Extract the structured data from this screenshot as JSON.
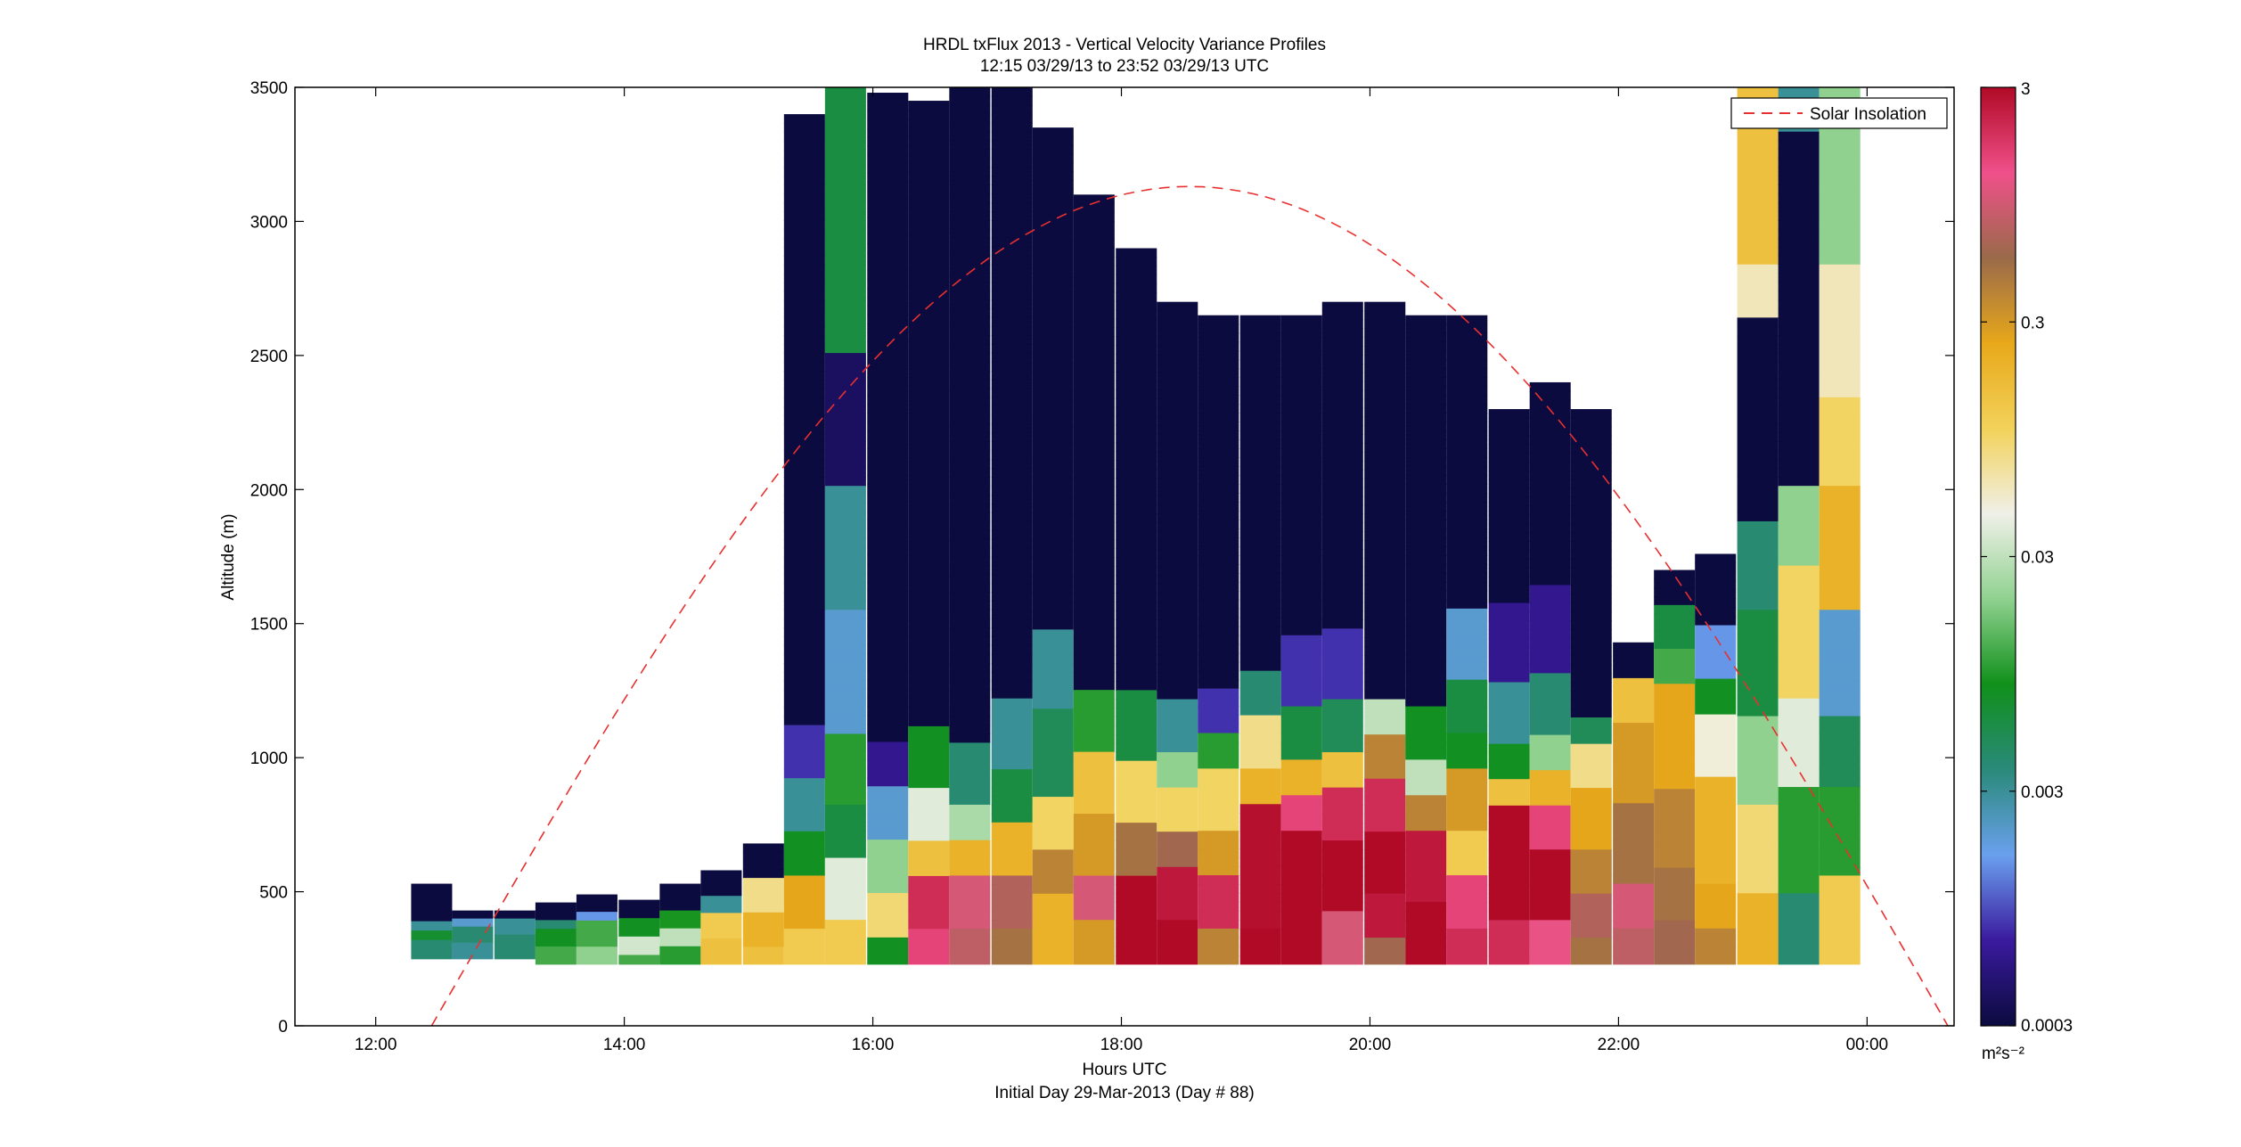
{
  "chart_data": {
    "type": "heatmap",
    "title": "HRDL txFlux 2013 - Vertical Velocity Variance Profiles",
    "subtitle": "12:15 03/29/13 to 23:52 03/29/13  UTC",
    "xlabel": "Hours UTC",
    "xlabel_note": "Initial Day 29-Mar-2013 (Day # 88)",
    "ylabel": "Altitude (m)",
    "x_range_hours": [
      11.35,
      24.7
    ],
    "ylim": [
      0,
      3500
    ],
    "x_ticks": [
      {
        "value": 12,
        "label": "12:00"
      },
      {
        "value": 14,
        "label": "14:00"
      },
      {
        "value": 16,
        "label": "16:00"
      },
      {
        "value": 18,
        "label": "18:00"
      },
      {
        "value": 20,
        "label": "20:00"
      },
      {
        "value": 22,
        "label": "22:00"
      },
      {
        "value": 24,
        "label": "00:00"
      }
    ],
    "y_ticks": [
      0,
      500,
      1000,
      1500,
      2000,
      2500,
      3000,
      3500
    ],
    "colorbar": {
      "scale": "log",
      "range": [
        0.0003,
        3
      ],
      "ticks": [
        {
          "value": 3,
          "label": "3"
        },
        {
          "value": 0.3,
          "label": "0.3"
        },
        {
          "value": 0.03,
          "label": "0.03"
        },
        {
          "value": 0.003,
          "label": "0.003"
        },
        {
          "value": 0.0003,
          "label": "0.0003"
        }
      ],
      "unit_label": "m²s⁻²",
      "stops": [
        "#0b0b3f",
        "#3a1a9e",
        "#6aa0ee",
        "#2a8a7a",
        "#10901a",
        "#8fd18f",
        "#f0f0e8",
        "#f2d25a",
        "#e8a81a",
        "#9a6a4a",
        "#f0508a",
        "#b00a26"
      ]
    },
    "legend": {
      "position": "top-right",
      "entries": [
        {
          "label": "Solar Insolation",
          "style": "dashed",
          "color": "#e83030"
        }
      ]
    },
    "solar_insolation": {
      "start_hour": 12.45,
      "peak_hour": 18.55,
      "peak_altitude": 3130,
      "end_hour": 24.65
    },
    "profiles": [
      {
        "hour": 12.45,
        "top": 530,
        "bottom": 250,
        "segments": [
          [
            0,
            0.0003
          ],
          [
            0.45,
            0.003
          ],
          [
            0.6,
            0.007
          ],
          [
            0.8,
            0.004
          ]
        ]
      },
      {
        "hour": 12.78,
        "top": 430,
        "bottom": 250,
        "segments": [
          [
            0,
            0.0003
          ],
          [
            0.2,
            0.002
          ],
          [
            0.4,
            0.004
          ],
          [
            0.7,
            0.003
          ]
        ]
      },
      {
        "hour": 13.12,
        "top": 430,
        "bottom": 250,
        "segments": [
          [
            0,
            0.0003
          ],
          [
            0.2,
            0.003
          ],
          [
            0.5,
            0.004
          ]
        ]
      },
      {
        "hour": 13.45,
        "top": 460,
        "bottom": 230,
        "segments": [
          [
            0,
            0.0003
          ],
          [
            0.25,
            0.004
          ],
          [
            0.5,
            0.008
          ],
          [
            0.75,
            0.012
          ]
        ]
      },
      {
        "hour": 13.78,
        "top": 490,
        "bottom": 230,
        "segments": [
          [
            0,
            0.0003
          ],
          [
            0.2,
            0.0015
          ],
          [
            0.4,
            0.012
          ],
          [
            0.7,
            0.02
          ]
        ]
      },
      {
        "hour": 14.12,
        "top": 470,
        "bottom": 230,
        "segments": [
          [
            0,
            0.0003
          ],
          [
            0.3,
            0.008
          ],
          [
            0.55,
            0.035
          ],
          [
            0.8,
            0.012
          ]
        ]
      },
      {
        "hour": 14.45,
        "top": 530,
        "bottom": 230,
        "segments": [
          [
            0,
            0.0003
          ],
          [
            0.3,
            0.009
          ],
          [
            0.55,
            0.03
          ],
          [
            0.8,
            0.01
          ]
        ]
      },
      {
        "hour": 14.78,
        "top": 580,
        "bottom": 230,
        "segments": [
          [
            0,
            0.0003
          ],
          [
            0.25,
            0.003
          ],
          [
            0.45,
            0.12
          ],
          [
            0.75,
            0.15
          ]
        ]
      },
      {
        "hour": 15.12,
        "top": 680,
        "bottom": 230,
        "segments": [
          [
            0,
            0.0003
          ],
          [
            0.3,
            0.08
          ],
          [
            0.6,
            0.2
          ],
          [
            0.85,
            0.15
          ]
        ]
      },
      {
        "hour": 15.45,
        "top": 3400,
        "bottom": 230,
        "segments": [
          [
            0,
            0.0003
          ],
          [
            0.72,
            0.0008
          ],
          [
            0.78,
            0.003
          ],
          [
            0.84,
            0.008
          ],
          [
            0.9,
            0.25
          ],
          [
            0.96,
            0.12
          ]
        ]
      },
      {
        "hour": 15.78,
        "top": 3500,
        "bottom": 230,
        "segments": [
          [
            0,
            0.006
          ],
          [
            0.3,
            0.0004
          ],
          [
            0.45,
            0.003
          ],
          [
            0.6,
            0.002
          ],
          [
            0.74,
            0.01
          ],
          [
            0.82,
            0.006
          ],
          [
            0.88,
            0.04
          ],
          [
            0.95,
            0.12
          ]
        ]
      },
      {
        "hour": 16.12,
        "top": 3480,
        "bottom": 230,
        "segments": [
          [
            0,
            0.0003
          ],
          [
            0.74,
            0.0006
          ],
          [
            0.8,
            0.002
          ],
          [
            0.86,
            0.02
          ],
          [
            0.92,
            0.09
          ],
          [
            0.97,
            0.008
          ]
        ]
      },
      {
        "hour": 16.45,
        "top": 3450,
        "bottom": 230,
        "segments": [
          [
            0,
            0.0003
          ],
          [
            0.72,
            0.008
          ],
          [
            0.8,
            0.04
          ],
          [
            0.86,
            0.15
          ],
          [
            0.9,
            2.0
          ],
          [
            0.96,
            1.5
          ]
        ]
      },
      {
        "hour": 16.78,
        "top": 3500,
        "bottom": 230,
        "segments": [
          [
            0,
            0.0003
          ],
          [
            0.75,
            0.004
          ],
          [
            0.82,
            0.025
          ],
          [
            0.86,
            0.2
          ],
          [
            0.9,
            1.0
          ],
          [
            0.96,
            0.8
          ]
        ]
      },
      {
        "hour": 17.12,
        "top": 3500,
        "bottom": 230,
        "segments": [
          [
            0,
            0.0003
          ],
          [
            0.7,
            0.003
          ],
          [
            0.78,
            0.006
          ],
          [
            0.84,
            0.2
          ],
          [
            0.9,
            0.7
          ],
          [
            0.96,
            0.5
          ]
        ]
      },
      {
        "hour": 17.45,
        "top": 3350,
        "bottom": 230,
        "segments": [
          [
            0,
            0.0003
          ],
          [
            0.6,
            0.003
          ],
          [
            0.7,
            0.005
          ],
          [
            0.8,
            0.1
          ],
          [
            0.86,
            0.4
          ],
          [
            0.92,
            0.2
          ]
        ]
      },
      {
        "hour": 17.78,
        "top": 3100,
        "bottom": 230,
        "segments": [
          [
            0,
            0.0003
          ],
          [
            0.64,
            0.01
          ],
          [
            0.72,
            0.15
          ],
          [
            0.8,
            0.3
          ],
          [
            0.88,
            1.0
          ],
          [
            0.94,
            0.3
          ]
        ]
      },
      {
        "hour": 18.12,
        "top": 2900,
        "bottom": 230,
        "segments": [
          [
            0,
            0.0003
          ],
          [
            0.62,
            0.006
          ],
          [
            0.72,
            0.1
          ],
          [
            0.8,
            0.5
          ],
          [
            0.88,
            3.0
          ],
          [
            0.95,
            3.0
          ]
        ]
      },
      {
        "hour": 18.45,
        "top": 2700,
        "bottom": 230,
        "segments": [
          [
            0,
            0.0003
          ],
          [
            0.6,
            0.003
          ],
          [
            0.68,
            0.02
          ],
          [
            0.74,
            0.1
          ],
          [
            0.8,
            0.6
          ],
          [
            0.86,
            2.5
          ],
          [
            0.94,
            3.0
          ]
        ]
      },
      {
        "hour": 18.78,
        "top": 2650,
        "bottom": 230,
        "segments": [
          [
            0,
            0.0003
          ],
          [
            0.58,
            0.0008
          ],
          [
            0.64,
            0.01
          ],
          [
            0.7,
            0.1
          ],
          [
            0.8,
            0.3
          ],
          [
            0.86,
            2.0
          ],
          [
            0.94,
            0.4
          ]
        ]
      },
      {
        "hour": 19.12,
        "top": 2650,
        "bottom": 230,
        "segments": [
          [
            0,
            0.0003
          ],
          [
            0.55,
            0.004
          ],
          [
            0.62,
            0.08
          ],
          [
            0.7,
            0.2
          ],
          [
            0.76,
            2.8
          ],
          [
            0.94,
            3.0
          ]
        ]
      },
      {
        "hour": 19.45,
        "top": 2650,
        "bottom": 230,
        "segments": [
          [
            0,
            0.0003
          ],
          [
            0.5,
            0.0008
          ],
          [
            0.6,
            0.006
          ],
          [
            0.68,
            0.2
          ],
          [
            0.74,
            1.5
          ],
          [
            0.8,
            3.0
          ]
        ]
      },
      {
        "hour": 19.78,
        "top": 2700,
        "bottom": 230,
        "segments": [
          [
            0,
            0.0003
          ],
          [
            0.5,
            0.0008
          ],
          [
            0.6,
            0.005
          ],
          [
            0.68,
            0.15
          ],
          [
            0.74,
            2.0
          ],
          [
            0.82,
            3.0
          ],
          [
            0.92,
            1.0
          ]
        ]
      },
      {
        "hour": 20.12,
        "top": 2700,
        "bottom": 230,
        "segments": [
          [
            0,
            0.0003
          ],
          [
            0.6,
            0.03
          ],
          [
            0.66,
            0.4
          ],
          [
            0.72,
            2.0
          ],
          [
            0.8,
            3.0
          ],
          [
            0.9,
            2.5
          ],
          [
            0.96,
            0.6
          ]
        ]
      },
      {
        "hour": 20.45,
        "top": 2650,
        "bottom": 230,
        "segments": [
          [
            0,
            0.0003
          ],
          [
            0.6,
            0.008
          ],
          [
            0.68,
            0.03
          ],
          [
            0.74,
            0.4
          ],
          [
            0.8,
            2.5
          ],
          [
            0.9,
            3.0
          ]
        ]
      },
      {
        "hour": 20.78,
        "top": 2650,
        "bottom": 230,
        "segments": [
          [
            0,
            0.0003
          ],
          [
            0.45,
            0.002
          ],
          [
            0.56,
            0.006
          ],
          [
            0.64,
            0.008
          ],
          [
            0.7,
            0.3
          ],
          [
            0.8,
            0.12
          ],
          [
            0.86,
            1.5
          ],
          [
            0.94,
            2.0
          ]
        ]
      },
      {
        "hour": 21.12,
        "top": 2300,
        "bottom": 230,
        "segments": [
          [
            0,
            0.0003
          ],
          [
            0.35,
            0.0006
          ],
          [
            0.5,
            0.003
          ],
          [
            0.6,
            0.008
          ],
          [
            0.66,
            0.15
          ],
          [
            0.72,
            3.0
          ],
          [
            0.92,
            2.0
          ]
        ]
      },
      {
        "hour": 21.45,
        "top": 2400,
        "bottom": 230,
        "segments": [
          [
            0,
            0.0003
          ],
          [
            0.35,
            0.0006
          ],
          [
            0.5,
            0.004
          ],
          [
            0.6,
            0.02
          ],
          [
            0.66,
            0.2
          ],
          [
            0.72,
            1.5
          ],
          [
            0.8,
            3.0
          ],
          [
            0.92,
            1.2
          ]
        ]
      },
      {
        "hour": 21.78,
        "top": 2300,
        "bottom": 230,
        "segments": [
          [
            0,
            0.0003
          ],
          [
            0.55,
            0.005
          ],
          [
            0.6,
            0.08
          ],
          [
            0.68,
            0.25
          ],
          [
            0.8,
            0.4
          ],
          [
            0.88,
            0.7
          ],
          [
            0.95,
            0.5
          ]
        ]
      },
      {
        "hour": 22.12,
        "top": 1430,
        "bottom": 230,
        "segments": [
          [
            0,
            0.0003
          ],
          [
            0.1,
            0.15
          ],
          [
            0.25,
            0.3
          ],
          [
            0.5,
            0.5
          ],
          [
            0.75,
            1.0
          ],
          [
            0.9,
            0.8
          ]
        ]
      },
      {
        "hour": 22.45,
        "top": 1700,
        "bottom": 230,
        "segments": [
          [
            0,
            0.0003
          ],
          [
            0.1,
            0.006
          ],
          [
            0.2,
            0.012
          ],
          [
            0.3,
            0.25
          ],
          [
            0.55,
            0.4
          ],
          [
            0.75,
            0.5
          ],
          [
            0.9,
            0.6
          ]
        ]
      },
      {
        "hour": 22.78,
        "top": 1760,
        "bottom": 230,
        "segments": [
          [
            0,
            0.0003
          ],
          [
            0.18,
            0.0015
          ],
          [
            0.3,
            0.008
          ],
          [
            0.4,
            0.05
          ],
          [
            0.55,
            0.2
          ],
          [
            0.8,
            0.25
          ],
          [
            0.92,
            0.4
          ]
        ]
      },
      {
        "hour": 23.12,
        "top": 3500,
        "bottom": 230,
        "segments": [
          [
            0,
            0.15
          ],
          [
            0.2,
            0.06
          ],
          [
            0.26,
            0.0003
          ],
          [
            0.5,
            0.004
          ],
          [
            0.6,
            0.006
          ],
          [
            0.72,
            0.02
          ],
          [
            0.82,
            0.09
          ],
          [
            0.92,
            0.2
          ]
        ]
      },
      {
        "hour": 23.45,
        "top": 3500,
        "bottom": 230,
        "segments": [
          [
            0,
            0.003
          ],
          [
            0.05,
            0.0003
          ],
          [
            0.45,
            0.02
          ],
          [
            0.55,
            0.1
          ],
          [
            0.7,
            0.04
          ],
          [
            0.8,
            0.01
          ],
          [
            0.92,
            0.004
          ]
        ]
      },
      {
        "hour": 23.78,
        "top": 3500,
        "bottom": 230,
        "segments": [
          [
            0,
            0.02
          ],
          [
            0.2,
            0.06
          ],
          [
            0.35,
            0.1
          ],
          [
            0.45,
            0.2
          ],
          [
            0.6,
            0.002
          ],
          [
            0.72,
            0.005
          ],
          [
            0.8,
            0.01
          ],
          [
            0.9,
            0.12
          ]
        ]
      }
    ]
  }
}
